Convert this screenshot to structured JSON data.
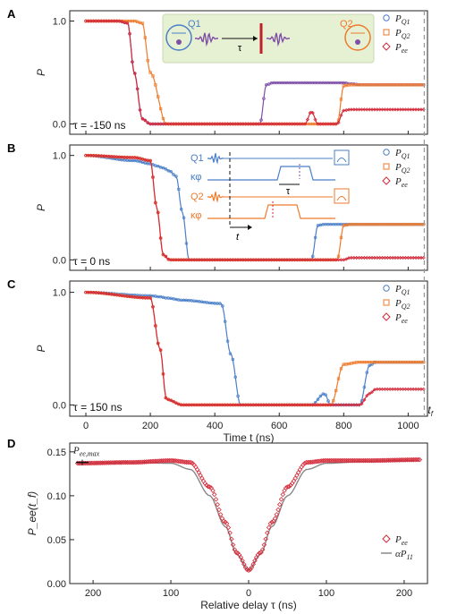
{
  "figure": {
    "colors": {
      "q1": "#4a7fc8",
      "q2": "#ee7a2b",
      "ee": "#d42a3a",
      "purple": "#7f4fa6",
      "theory": "#888888",
      "vline": "#999999"
    },
    "panels": [
      "A",
      "B",
      "C"
    ],
    "labelD": "D",
    "xlabel": "Time t (ns)",
    "xticks": [
      "0",
      "200",
      "400",
      "600",
      "800",
      "1000"
    ],
    "yticks_top": [
      "0.0",
      "1.0"
    ],
    "ylabel": "P",
    "tf_label": "t_f",
    "tau_labels": [
      "τ = -150 ns",
      "τ = 0 ns",
      "τ = 150 ns"
    ],
    "legend": [
      "P_Q1",
      "P_Q2",
      "P_ee"
    ],
    "schematicA": {
      "q1": "Q1",
      "q2": "Q2",
      "tau": "τ"
    },
    "schematicB": {
      "q1": "Q1",
      "k1": "κφ",
      "q2": "Q2",
      "k2": "κφ",
      "tau": "τ",
      "t": "t"
    }
  },
  "panelD": {
    "label": "D",
    "xlabel": "Relative delay τ (ns)",
    "ylabel": "P_ee(t_f)",
    "ymax_label": "P_ee,max",
    "legend": [
      "P_ee",
      "αP_11"
    ],
    "xticks": [
      "200",
      "100",
      "0",
      "100",
      "200"
    ],
    "yticks": [
      "0.00",
      "0.05",
      "0.10",
      "0.15"
    ]
  },
  "chart_data": [
    {
      "type": "line",
      "panel": "A",
      "annotation": "τ = -150 ns",
      "xlabel": "",
      "ylabel": "P",
      "xlim": [
        -50,
        1060
      ],
      "ylim": [
        -0.1,
        1.1
      ],
      "x": [
        0,
        100,
        130,
        150,
        175,
        200,
        250,
        400,
        540,
        560,
        580,
        620,
        680,
        700,
        720,
        780,
        800,
        820,
        860,
        1050
      ],
      "series": [
        {
          "name": "P_Q1",
          "values": [
            1.0,
            1.0,
            0.98,
            0.5,
            0.05,
            0.0,
            0.0,
            0.0,
            0.0,
            0.38,
            0.4,
            0.4,
            0.4,
            0.4,
            0.4,
            0.4,
            0.4,
            0.39,
            0.38,
            0.38
          ]
        },
        {
          "name": "P_Q2",
          "values": [
            1.0,
            1.0,
            1.0,
            1.0,
            0.98,
            0.5,
            0.0,
            0.0,
            0.0,
            0.0,
            0.0,
            0.0,
            0.0,
            0.0,
            0.0,
            0.0,
            0.37,
            0.38,
            0.38,
            0.38
          ]
        },
        {
          "name": "P_ee",
          "values": [
            1.0,
            1.0,
            0.98,
            0.5,
            0.05,
            0.0,
            0.0,
            0.0,
            0.0,
            0.0,
            0.0,
            0.0,
            0.0,
            0.12,
            0.0,
            0.0,
            0.13,
            0.14,
            0.14,
            0.14
          ]
        }
      ]
    },
    {
      "type": "line",
      "panel": "B",
      "annotation": "τ = 0 ns",
      "xlabel": "",
      "ylabel": "P",
      "xlim": [
        -50,
        1060
      ],
      "ylim": [
        -0.1,
        1.1
      ],
      "x": [
        0,
        150,
        200,
        220,
        240,
        260,
        280,
        300,
        320,
        400,
        700,
        720,
        740,
        780,
        800,
        820,
        1050
      ],
      "series": [
        {
          "name": "P_Q1",
          "values": [
            1.0,
            0.95,
            0.92,
            0.9,
            0.88,
            0.85,
            0.8,
            0.45,
            0.0,
            0.0,
            0.0,
            0.33,
            0.34,
            0.34,
            0.34,
            0.34,
            0.34
          ]
        },
        {
          "name": "P_Q2",
          "values": [
            1.0,
            0.98,
            0.95,
            0.5,
            0.05,
            0.0,
            0.0,
            0.0,
            0.0,
            0.0,
            0.0,
            0.0,
            0.0,
            0.0,
            0.33,
            0.34,
            0.34
          ]
        },
        {
          "name": "P_ee",
          "values": [
            1.0,
            0.98,
            0.95,
            0.5,
            0.05,
            0.0,
            0.0,
            0.0,
            0.0,
            0.0,
            0.0,
            0.0,
            0.0,
            0.0,
            0.0,
            0.02,
            0.02
          ]
        }
      ]
    },
    {
      "type": "line",
      "panel": "C",
      "annotation": "τ = 150 ns",
      "xlabel": "Time t (ns)",
      "ylabel": "P",
      "xlim": [
        -50,
        1060
      ],
      "ylim": [
        -0.1,
        1.1
      ],
      "x": [
        0,
        200,
        230,
        250,
        300,
        420,
        450,
        480,
        700,
        740,
        760,
        800,
        850,
        880,
        900,
        1050
      ],
      "series": [
        {
          "name": "P_Q1",
          "values": [
            1.0,
            0.97,
            0.96,
            0.95,
            0.93,
            0.9,
            0.45,
            0.0,
            0.0,
            0.1,
            0.0,
            0.0,
            0.0,
            0.35,
            0.38,
            0.38
          ]
        },
        {
          "name": "P_Q2",
          "values": [
            1.0,
            0.95,
            0.5,
            0.05,
            0.0,
            0.0,
            0.0,
            0.0,
            0.0,
            0.0,
            0.0,
            0.36,
            0.38,
            0.38,
            0.38,
            0.38
          ]
        },
        {
          "name": "P_ee",
          "values": [
            1.0,
            0.95,
            0.5,
            0.05,
            0.0,
            0.0,
            0.0,
            0.0,
            0.0,
            0.0,
            0.0,
            0.0,
            0.0,
            0.1,
            0.14,
            0.14
          ]
        }
      ]
    },
    {
      "type": "line",
      "panel": "D",
      "xlabel": "Relative delay τ (ns)",
      "ylabel": "P_ee(t_f)",
      "xlim": [
        -230,
        230
      ],
      "ylim": [
        0,
        0.16
      ],
      "x_reversed_left": true,
      "x": [
        -220,
        -150,
        -100,
        -75,
        -50,
        -30,
        -15,
        0,
        15,
        30,
        50,
        75,
        100,
        150,
        220
      ],
      "series": [
        {
          "name": "P_ee",
          "values": [
            0.137,
            0.138,
            0.14,
            0.138,
            0.11,
            0.07,
            0.035,
            0.015,
            0.035,
            0.07,
            0.11,
            0.138,
            0.14,
            0.14,
            0.141
          ]
        },
        {
          "name": "αP_11",
          "values": [
            0.137,
            0.138,
            0.137,
            0.13,
            0.1,
            0.065,
            0.033,
            0.015,
            0.033,
            0.065,
            0.1,
            0.13,
            0.137,
            0.139,
            0.14
          ]
        }
      ],
      "reference": {
        "label": "P_ee,max",
        "value": 0.138
      }
    }
  ]
}
